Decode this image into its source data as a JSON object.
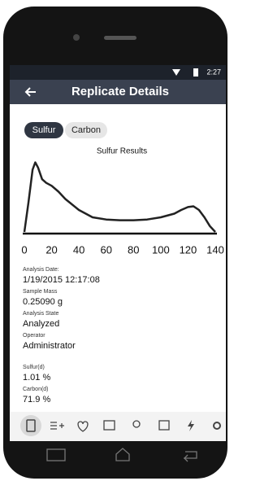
{
  "status_bar": {
    "time": "2:27"
  },
  "app_bar": {
    "title": "Replicate Details"
  },
  "tabs": [
    "Sulfur",
    "Carbon"
  ],
  "chart": {
    "type": "line",
    "title": "Sulfur Results",
    "x": [
      0,
      3,
      6,
      8,
      10,
      13,
      16,
      20,
      25,
      30,
      40,
      50,
      60,
      70,
      80,
      90,
      100,
      110,
      115,
      120,
      124,
      128,
      132,
      136,
      140
    ],
    "y": [
      0,
      40,
      85,
      95,
      88,
      72,
      67,
      63,
      55,
      45,
      30,
      20,
      17,
      16,
      16,
      17,
      20,
      25,
      30,
      34,
      35,
      30,
      20,
      8,
      0
    ],
    "xlim": [
      0,
      140
    ],
    "xticks": [
      0,
      20,
      40,
      60,
      80,
      100,
      120,
      140
    ],
    "ylim": [
      0,
      100
    ],
    "color": "#222222"
  },
  "fields": [
    {
      "label": "Analysis Date:",
      "value": "1/19/2015 12:17:08"
    },
    {
      "label": "Sample Mass",
      "value": "0.25090 g"
    },
    {
      "label": "Analysis State",
      "value": "Analyzed"
    },
    {
      "label": "Operator",
      "value": "Administrator"
    },
    {
      "label": "Sulfur(d)",
      "value": "1.01 %"
    },
    {
      "label": "Carbon(d)",
      "value": "71.9 %"
    }
  ]
}
